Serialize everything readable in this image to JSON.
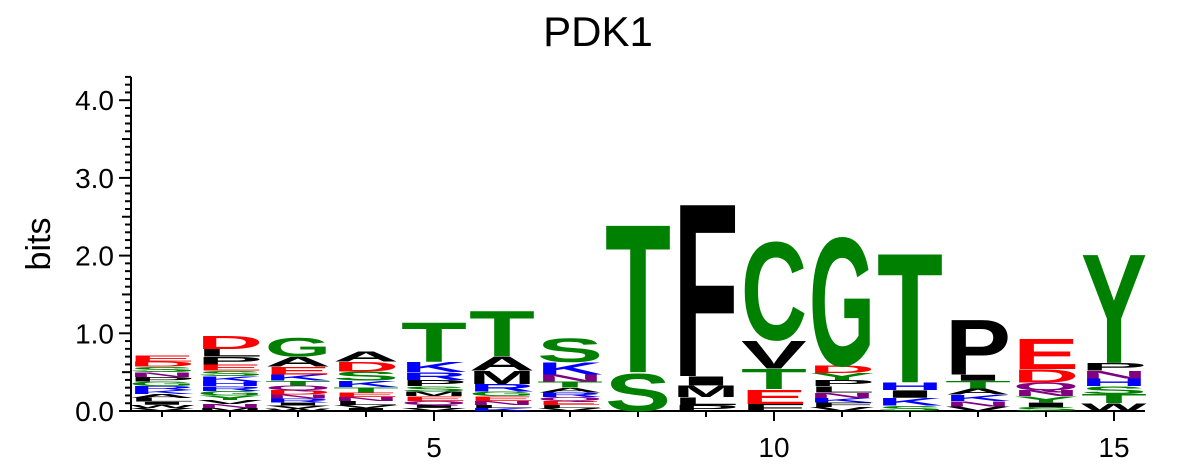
{
  "chart_data": {
    "type": "sequence-logo",
    "title": "PDK1",
    "ylabel": "bits",
    "xlabel": "",
    "ylim": [
      0,
      4.3
    ],
    "yticks": [
      "0.0",
      "1.0",
      "2.0",
      "3.0",
      "4.0"
    ],
    "xticks": [
      "5",
      "10",
      "15"
    ],
    "xtick_positions": [
      5,
      10,
      15
    ],
    "positions": [
      1,
      2,
      3,
      4,
      5,
      6,
      7,
      8,
      9,
      10,
      11,
      12,
      13,
      14,
      15
    ],
    "colors": {
      "A": "#000000",
      "F": "#000000",
      "I": "#000000",
      "L": "#000000",
      "M": "#000000",
      "P": "#000000",
      "V": "#000000",
      "W": "#000000",
      "C": "#008000",
      "G": "#008000",
      "S": "#008000",
      "T": "#008000",
      "Y": "#008000",
      "D": "#ff0000",
      "E": "#ff0000",
      "H": "#0000ff",
      "K": "#0000ff",
      "R": "#0000ff",
      "N": "#800080",
      "Q": "#800080"
    },
    "stacks": [
      [
        [
          "V",
          0.04
        ],
        [
          "W",
          0.04
        ],
        [
          "I",
          0.04
        ],
        [
          "L",
          0.05
        ],
        [
          "A",
          0.05
        ],
        [
          "K",
          0.05
        ],
        [
          "R",
          0.05
        ],
        [
          "G",
          0.06
        ],
        [
          "P",
          0.06
        ],
        [
          "N",
          0.06
        ],
        [
          "S",
          0.07
        ],
        [
          "D",
          0.07
        ],
        [
          "E",
          0.08
        ]
      ],
      [
        [
          "M",
          0.04
        ],
        [
          "N",
          0.05
        ],
        [
          "V",
          0.05
        ],
        [
          "Y",
          0.06
        ],
        [
          "G",
          0.06
        ],
        [
          "R",
          0.06
        ],
        [
          "H",
          0.06
        ],
        [
          "K",
          0.07
        ],
        [
          "S",
          0.07
        ],
        [
          "E",
          0.08
        ],
        [
          "P",
          0.1
        ],
        [
          "L",
          0.1
        ],
        [
          "D",
          0.17
        ]
      ],
      [
        [
          "W",
          0.03
        ],
        [
          "V",
          0.04
        ],
        [
          "I",
          0.04
        ],
        [
          "R",
          0.05
        ],
        [
          "N",
          0.05
        ],
        [
          "D",
          0.06
        ],
        [
          "Q",
          0.06
        ],
        [
          "T",
          0.06
        ],
        [
          "K",
          0.08
        ],
        [
          "E",
          0.1
        ],
        [
          "A",
          0.13
        ],
        [
          "G",
          0.25
        ]
      ],
      [
        [
          "I",
          0.04
        ],
        [
          "V",
          0.04
        ],
        [
          "L",
          0.05
        ],
        [
          "N",
          0.05
        ],
        [
          "E",
          0.06
        ],
        [
          "T",
          0.07
        ],
        [
          "K",
          0.08
        ],
        [
          "S",
          0.12
        ],
        [
          "D",
          0.13
        ],
        [
          "A",
          0.14
        ]
      ],
      [
        [
          "V",
          0.04
        ],
        [
          "I",
          0.04
        ],
        [
          "Q",
          0.05
        ],
        [
          "E",
          0.06
        ],
        [
          "M",
          0.06
        ],
        [
          "S",
          0.07
        ],
        [
          "P",
          0.08
        ],
        [
          "R",
          0.1
        ],
        [
          "K",
          0.14
        ],
        [
          "T",
          0.52
        ]
      ],
      [
        [
          "K",
          0.04
        ],
        [
          "L",
          0.04
        ],
        [
          "N",
          0.05
        ],
        [
          "E",
          0.06
        ],
        [
          "G",
          0.06
        ],
        [
          "R",
          0.1
        ],
        [
          "M",
          0.17
        ],
        [
          "A",
          0.19
        ],
        [
          "T",
          0.6
        ]
      ],
      [
        [
          "V",
          0.04
        ],
        [
          "L",
          0.04
        ],
        [
          "E",
          0.05
        ],
        [
          "Q",
          0.05
        ],
        [
          "R",
          0.06
        ],
        [
          "A",
          0.06
        ],
        [
          "T",
          0.08
        ],
        [
          "N",
          0.09
        ],
        [
          "K",
          0.16
        ],
        [
          "S",
          0.32
        ]
      ],
      [
        [
          "S",
          0.5
        ],
        [
          "T",
          1.97
        ]
      ],
      [
        [
          "P",
          0.08
        ],
        [
          "L",
          0.1
        ],
        [
          "M",
          0.15
        ],
        [
          "I",
          0.12
        ],
        [
          "F",
          2.3
        ]
      ],
      [
        [
          "F",
          0.09
        ],
        [
          "E",
          0.19
        ],
        [
          "T",
          0.27
        ],
        [
          "V",
          0.37
        ],
        [
          "C",
          1.3
        ]
      ],
      [
        [
          "V",
          0.05
        ],
        [
          "F",
          0.06
        ],
        [
          "K",
          0.06
        ],
        [
          "N",
          0.07
        ],
        [
          "L",
          0.08
        ],
        [
          "P",
          0.08
        ],
        [
          "Y",
          0.09
        ],
        [
          "D",
          0.1
        ],
        [
          "G",
          1.7
        ]
      ],
      [
        [
          "S",
          0.07
        ],
        [
          "K",
          0.1
        ],
        [
          "I",
          0.1
        ],
        [
          "H",
          0.1
        ],
        [
          "T",
          1.72
        ]
      ],
      [
        [
          "V",
          0.06
        ],
        [
          "N",
          0.07
        ],
        [
          "K",
          0.08
        ],
        [
          "A",
          0.08
        ],
        [
          "T",
          0.1
        ],
        [
          "I",
          0.08
        ],
        [
          "P",
          0.73
        ]
      ],
      [
        [
          "S",
          0.05
        ],
        [
          "I",
          0.06
        ],
        [
          "Y",
          0.08
        ],
        [
          "N",
          0.08
        ],
        [
          "Q",
          0.1
        ],
        [
          "D",
          0.17
        ],
        [
          "E",
          0.4
        ]
      ],
      [
        [
          "W",
          0.1
        ],
        [
          "T",
          0.12
        ],
        [
          "S",
          0.1
        ],
        [
          "H",
          0.1
        ],
        [
          "N",
          0.1
        ],
        [
          "P",
          0.1
        ],
        [
          "Y",
          1.45
        ]
      ]
    ]
  }
}
